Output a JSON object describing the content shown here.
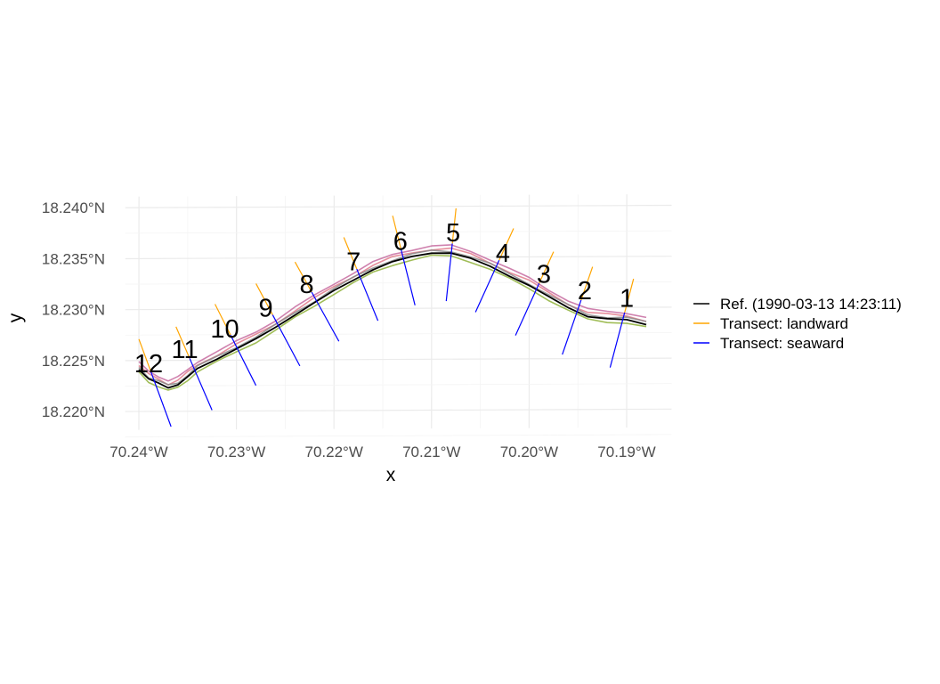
{
  "chart_data": {
    "type": "line",
    "title": "",
    "xlabel": "x",
    "ylabel": "y",
    "xlim": [
      -70.2414,
      -70.1854
    ],
    "ylim": [
      -0.2191,
      0.2418
    ],
    "x_ticks": [
      {
        "value": -70.24,
        "label": "70.24°W"
      },
      {
        "value": -70.23,
        "label": "70.23°W"
      },
      {
        "value": -70.22,
        "label": "70.22°W"
      },
      {
        "value": -70.21,
        "label": "70.21°W"
      },
      {
        "value": -70.2,
        "label": "70.20°W"
      },
      {
        "value": -70.19,
        "label": "70.19°W"
      }
    ],
    "y_ticks": [
      {
        "value": 18.22,
        "label": "18.220°N"
      },
      {
        "value": 18.225,
        "label": "18.225°N"
      },
      {
        "value": 18.23,
        "label": "18.230°N"
      },
      {
        "value": 18.235,
        "label": "18.235°N"
      },
      {
        "value": 18.24,
        "label": "18.240°N"
      }
    ],
    "grid": true,
    "legend_position": "right",
    "legend": [
      {
        "label": "Ref. (1990-03-13 14:23:11)",
        "color": "#000000"
      },
      {
        "label": "Transect: landward",
        "color": "#FFA500"
      },
      {
        "label": "Transect: seaward",
        "color": "#0000FF"
      }
    ],
    "reference_line": {
      "color": "#000000",
      "points": [
        [
          -70.24,
          18.2241
        ],
        [
          -70.239,
          18.2232
        ],
        [
          -70.238,
          18.2228
        ],
        [
          -70.237,
          18.2223
        ],
        [
          -70.236,
          18.2226
        ],
        [
          -70.235,
          18.2234
        ],
        [
          -70.234,
          18.2242
        ],
        [
          -70.232,
          18.2251
        ],
        [
          -70.23,
          18.2261
        ],
        [
          -70.228,
          18.2271
        ],
        [
          -70.226,
          18.2282
        ],
        [
          -70.224,
          18.2294
        ],
        [
          -70.222,
          18.2306
        ],
        [
          -70.22,
          18.2318
        ],
        [
          -70.218,
          18.2328
        ],
        [
          -70.216,
          18.2338
        ],
        [
          -70.214,
          18.2346
        ],
        [
          -70.212,
          18.2351
        ],
        [
          -70.21,
          18.2354
        ],
        [
          -70.208,
          18.2354
        ],
        [
          -70.206,
          18.2349
        ],
        [
          -70.204,
          18.2341
        ],
        [
          -70.202,
          18.2331
        ],
        [
          -70.2,
          18.2322
        ],
        [
          -70.198,
          18.2311
        ],
        [
          -70.196,
          18.23
        ],
        [
          -70.194,
          18.2291
        ],
        [
          -70.192,
          18.2289
        ],
        [
          -70.19,
          18.2288
        ],
        [
          -70.188,
          18.2283
        ]
      ]
    },
    "other_shorelines": [
      {
        "color": "#E07A8A",
        "dy": 0.0004
      },
      {
        "color": "#C76BA0",
        "dy": 0.0007
      },
      {
        "color": "#8FB23A",
        "dy": -0.0003
      },
      {
        "color": "#888888",
        "dy": 0.0002
      }
    ],
    "transects": [
      {
        "id": "1",
        "landward": [
          -70.1893,
          18.2328
        ],
        "seaward": [
          -70.1917,
          18.2241
        ],
        "label_at": [
          -70.19,
          18.231
        ]
      },
      {
        "id": "2",
        "landward": [
          -70.1935,
          18.234
        ],
        "seaward": [
          -70.1966,
          18.2254
        ],
        "label_at": [
          -70.1943,
          18.2318
        ]
      },
      {
        "id": "3",
        "landward": [
          -70.1975,
          18.2355
        ],
        "seaward": [
          -70.2014,
          18.2273
        ],
        "label_at": [
          -70.1985,
          18.2334
        ]
      },
      {
        "id": "4",
        "landward": [
          -70.2016,
          18.2378
        ],
        "seaward": [
          -70.2055,
          18.2296
        ],
        "label_at": [
          -70.2027,
          18.2355
        ]
      },
      {
        "id": "5",
        "landward": [
          -70.2075,
          18.2398
        ],
        "seaward": [
          -70.2085,
          18.2307
        ],
        "label_at": [
          -70.2078,
          18.2375
        ]
      },
      {
        "id": "6",
        "landward": [
          -70.214,
          18.2391
        ],
        "seaward": [
          -70.2117,
          18.2303
        ],
        "label_at": [
          -70.2132,
          18.2367
        ]
      },
      {
        "id": "7",
        "landward": [
          -70.219,
          18.237
        ],
        "seaward": [
          -70.2155,
          18.2288
        ],
        "label_at": [
          -70.218,
          18.2347
        ]
      },
      {
        "id": "8",
        "landward": [
          -70.224,
          18.2346
        ],
        "seaward": [
          -70.2195,
          18.2268
        ],
        "label_at": [
          -70.2228,
          18.2325
        ]
      },
      {
        "id": "9",
        "landward": [
          -70.228,
          18.2325
        ],
        "seaward": [
          -70.2235,
          18.2244
        ],
        "label_at": [
          -70.227,
          18.2302
        ]
      },
      {
        "id": "10",
        "landward": [
          -70.2322,
          18.2305
        ],
        "seaward": [
          -70.228,
          18.2225
        ],
        "label_at": [
          -70.2312,
          18.2282
        ]
      },
      {
        "id": "11",
        "landward": [
          -70.2362,
          18.2283
        ],
        "seaward": [
          -70.2325,
          18.2201
        ],
        "label_at": [
          -70.2353,
          18.2262
        ]
      },
      {
        "id": "12",
        "landward": [
          -70.24,
          18.2271
        ],
        "seaward": [
          -70.2367,
          18.2185
        ],
        "label_at": [
          -70.239,
          18.2248
        ]
      }
    ]
  }
}
